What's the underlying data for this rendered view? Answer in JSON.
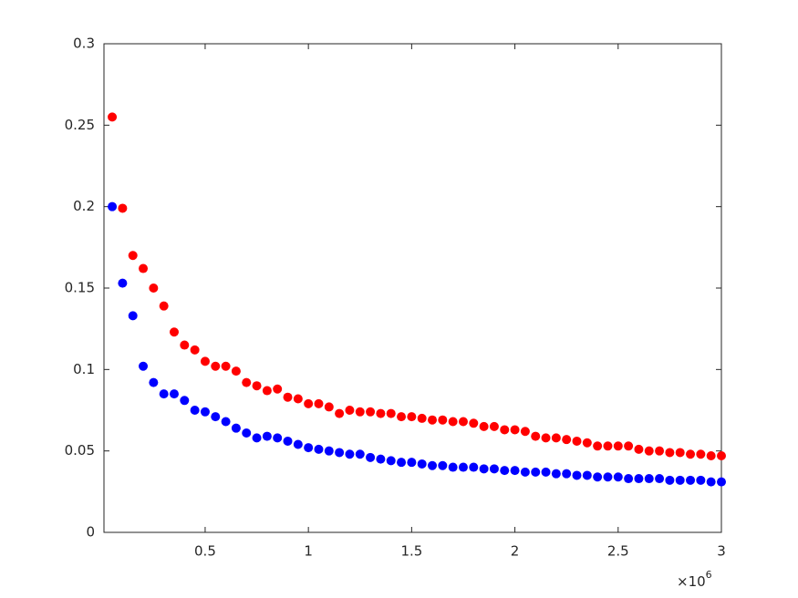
{
  "chart_data": {
    "type": "scatter",
    "x_offset_base": "×10",
    "x_offset_power": "6",
    "x": [
      50000,
      100000,
      150000,
      200000,
      250000,
      300000,
      350000,
      400000,
      450000,
      500000,
      550000,
      600000,
      650000,
      700000,
      750000,
      800000,
      850000,
      900000,
      950000,
      1000000,
      1050000,
      1100000,
      1150000,
      1200000,
      1250000,
      1300000,
      1350000,
      1400000,
      1450000,
      1500000,
      1550000,
      1600000,
      1650000,
      1700000,
      1750000,
      1800000,
      1850000,
      1900000,
      1950000,
      2000000,
      2050000,
      2100000,
      2150000,
      2200000,
      2250000,
      2300000,
      2350000,
      2400000,
      2450000,
      2500000,
      2550000,
      2600000,
      2650000,
      2700000,
      2750000,
      2800000,
      2850000,
      2900000,
      2950000,
      3000000
    ],
    "series": [
      {
        "color": "#ff0000",
        "values": [
          0.255,
          0.199,
          0.17,
          0.162,
          0.15,
          0.139,
          0.123,
          0.115,
          0.112,
          0.105,
          0.102,
          0.102,
          0.099,
          0.092,
          0.09,
          0.087,
          0.088,
          0.083,
          0.082,
          0.079,
          0.079,
          0.077,
          0.073,
          0.075,
          0.074,
          0.074,
          0.073,
          0.073,
          0.071,
          0.071,
          0.07,
          0.069,
          0.069,
          0.068,
          0.068,
          0.067,
          0.065,
          0.065,
          0.063,
          0.063,
          0.062,
          0.059,
          0.058,
          0.058,
          0.057,
          0.056,
          0.055,
          0.053,
          0.053,
          0.053,
          0.053,
          0.051,
          0.05,
          0.05,
          0.049,
          0.049,
          0.048,
          0.048,
          0.047,
          0.047
        ]
      },
      {
        "color": "#0000ff",
        "values": [
          0.2,
          0.153,
          0.133,
          0.102,
          0.092,
          0.085,
          0.085,
          0.081,
          0.075,
          0.074,
          0.071,
          0.068,
          0.064,
          0.061,
          0.058,
          0.059,
          0.058,
          0.056,
          0.054,
          0.052,
          0.051,
          0.05,
          0.049,
          0.048,
          0.048,
          0.046,
          0.045,
          0.044,
          0.043,
          0.043,
          0.042,
          0.041,
          0.041,
          0.04,
          0.04,
          0.04,
          0.039,
          0.039,
          0.038,
          0.038,
          0.037,
          0.037,
          0.037,
          0.036,
          0.036,
          0.035,
          0.035,
          0.034,
          0.034,
          0.034,
          0.033,
          0.033,
          0.033,
          0.033,
          0.032,
          0.032,
          0.032,
          0.032,
          0.031,
          0.031
        ]
      }
    ],
    "xlim": [
      10000,
      3000000
    ],
    "ylim": [
      0,
      0.3
    ],
    "xticks": [
      {
        "value": 500000,
        "label": "0.5"
      },
      {
        "value": 1000000,
        "label": "1"
      },
      {
        "value": 1500000,
        "label": "1.5"
      },
      {
        "value": 2000000,
        "label": "2"
      },
      {
        "value": 2500000,
        "label": "2.5"
      },
      {
        "value": 3000000,
        "label": "3"
      }
    ],
    "yticks": [
      0,
      0.05,
      0.1,
      0.15,
      0.2,
      0.25,
      0.3
    ],
    "grid": false
  }
}
